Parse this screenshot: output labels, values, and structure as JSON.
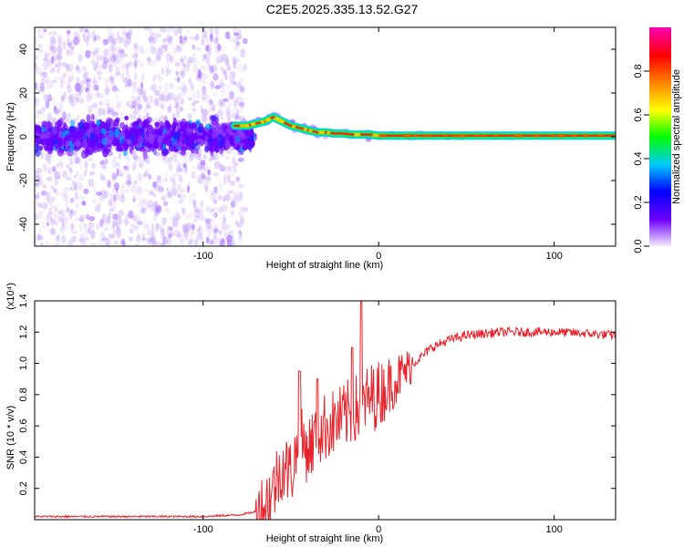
{
  "title": "C2E5.2025.335.13.52.G27",
  "chart_data": [
    {
      "type": "heatmap",
      "xlabel": "Height of straight line (km)",
      "ylabel": "Frequency (Hz)",
      "xlim": [
        -196,
        135
      ],
      "ylim": [
        -50,
        50
      ],
      "xticks": [
        -100,
        0,
        100
      ],
      "xtick_labels": [
        "-100",
        "0",
        "100"
      ],
      "yticks": [
        -40,
        -20,
        0,
        20,
        40
      ],
      "ytick_labels": [
        "-40",
        "-20",
        "0",
        "20",
        "40"
      ],
      "colorbar": {
        "label": "Normalized spectral amplitude",
        "range": [
          0,
          1
        ],
        "ticks": [
          0.0,
          0.2,
          0.4,
          0.6,
          0.8
        ],
        "tick_labels": [
          "0.0",
          "0.2",
          "0.4",
          "0.6",
          "0.8"
        ],
        "colors": [
          "#f2ecfb",
          "#7000ff",
          "#0000ff",
          "#00c8ff",
          "#00ff00",
          "#ffff00",
          "#ff8000",
          "#ff0000",
          "#ff00b4"
        ]
      },
      "ridge": {
        "x": [
          -82,
          -75,
          -70,
          -65,
          -60,
          -55,
          -50,
          -45,
          -40,
          -35,
          -30,
          -25,
          -20,
          -15,
          -10,
          -5,
          0,
          5,
          135
        ],
        "y": [
          5,
          5,
          6,
          7,
          9,
          7,
          5,
          4,
          3,
          2,
          2,
          1.5,
          1.5,
          1,
          1,
          1,
          0.5,
          0.5,
          0.5
        ]
      }
    },
    {
      "type": "line",
      "xlabel": "Height of straight line (km)",
      "ylabel": "SNR (10 * v/v)",
      "scale_label": "(x10⁴)",
      "xlim": [
        -196,
        135
      ],
      "ylim": [
        0,
        1.4
      ],
      "xticks": [
        -100,
        0,
        100
      ],
      "xtick_labels": [
        "-100",
        "0",
        "100"
      ],
      "yticks": [
        0.2,
        0.4,
        0.6,
        0.8,
        1.0,
        1.2,
        1.4
      ],
      "ytick_labels": [
        "0.2",
        "0.4",
        "0.6",
        "0.8",
        "1.0",
        "1.2",
        "1.4"
      ],
      "line_color": "#e8232b",
      "series": [
        {
          "name": "SNR",
          "x": [
            -196,
            -150,
            -100,
            -80,
            -70,
            -65,
            -60,
            -55,
            -50,
            -45,
            -40,
            -35,
            -30,
            -25,
            -20,
            -15,
            -10,
            -5,
            0,
            5,
            10,
            15,
            20,
            25,
            30,
            40,
            50,
            70,
            100,
            120,
            135
          ],
          "y": [
            0.02,
            0.02,
            0.02,
            0.03,
            0.05,
            0.09,
            0.2,
            0.35,
            0.3,
            0.5,
            0.45,
            0.55,
            0.6,
            0.62,
            0.65,
            0.7,
            0.72,
            0.78,
            0.8,
            0.85,
            0.9,
            0.95,
            1.0,
            1.05,
            1.1,
            1.15,
            1.18,
            1.2,
            1.2,
            1.19,
            1.18
          ],
          "peaks": [
            {
              "x": -45,
              "y": 0.95
            },
            {
              "x": -35,
              "y": 0.9
            },
            {
              "x": -10,
              "y": 1.4
            },
            {
              "x": -15,
              "y": 1.1
            }
          ]
        }
      ]
    }
  ]
}
